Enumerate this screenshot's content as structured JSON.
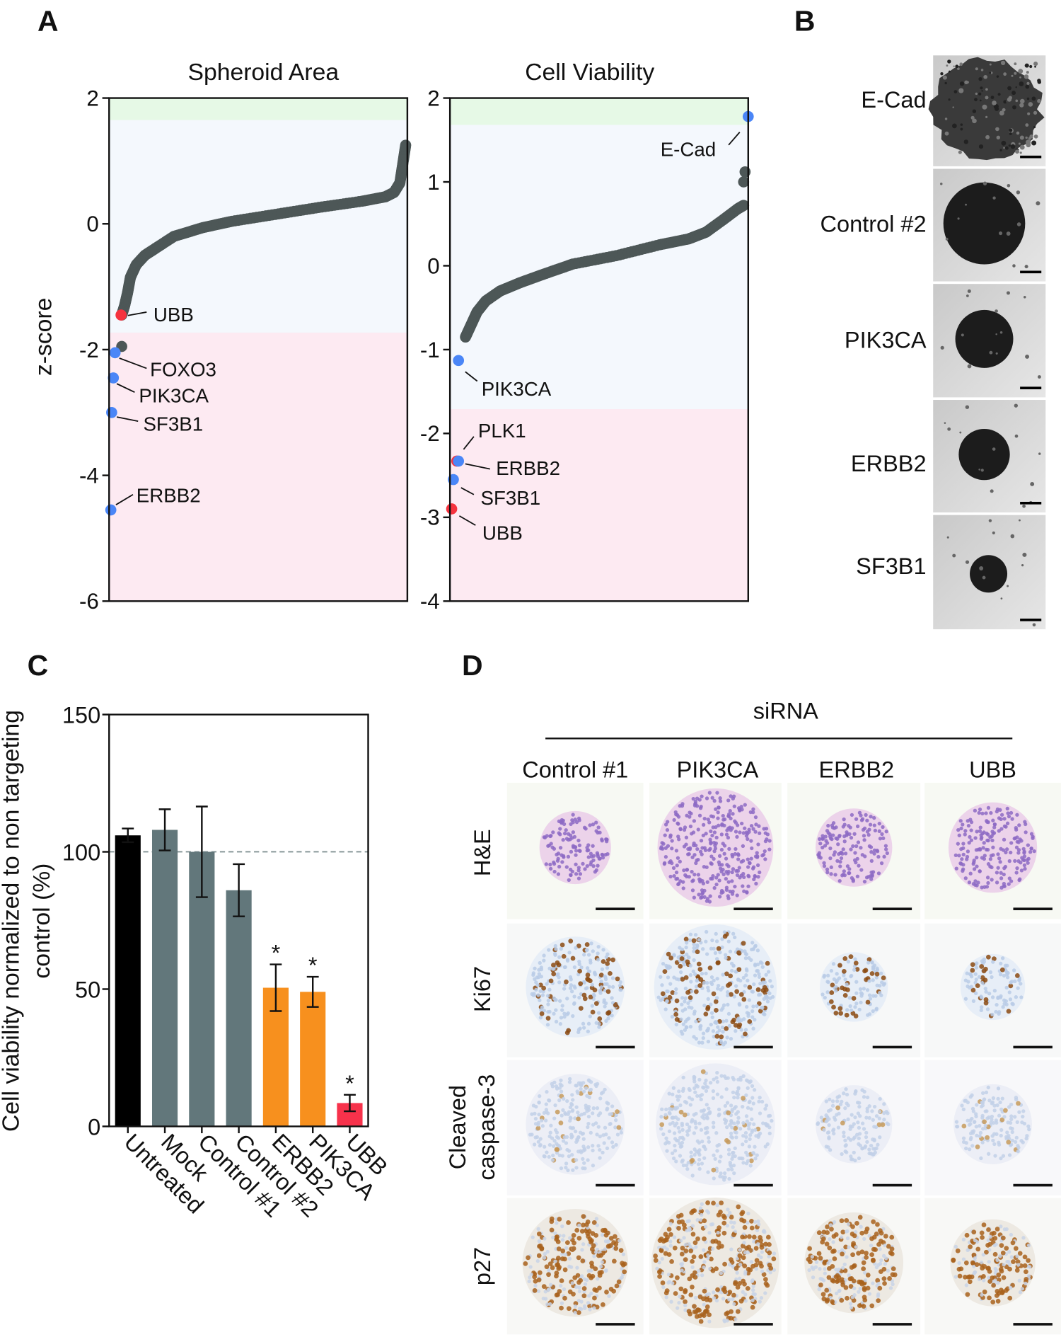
{
  "panels": {
    "A": "A",
    "B": "B",
    "C": "C",
    "D": "D"
  },
  "chart_data": [
    {
      "type": "scatter",
      "title": "Spheroid Area",
      "ylabel": "z-score",
      "ylim": [
        -6,
        2
      ],
      "yticks": [
        "2",
        "0",
        "-2",
        "-4",
        "-6"
      ],
      "bands": {
        "green_above": 1.65,
        "pink_below": -1.73
      },
      "band_colors": {
        "green": "#e6f9e6",
        "neutral": "#f4f8fd",
        "pink": "#fdeaf2"
      },
      "point_color": "#4d5757",
      "sorted_curve_percentile_vs_z": [
        [
          2,
          -1.45
        ],
        [
          3,
          -1.3
        ],
        [
          4,
          -1.1
        ],
        [
          5,
          -0.85
        ],
        [
          7,
          -0.65
        ],
        [
          10,
          -0.5
        ],
        [
          14,
          -0.38
        ],
        [
          20,
          -0.2
        ],
        [
          30,
          -0.06
        ],
        [
          40,
          0.04
        ],
        [
          55,
          0.15
        ],
        [
          70,
          0.26
        ],
        [
          85,
          0.36
        ],
        [
          93,
          0.43
        ],
        [
          96,
          0.5
        ],
        [
          98,
          0.65
        ],
        [
          99,
          0.95
        ],
        [
          100,
          1.25
        ]
      ],
      "extra_points": [
        {
          "percentile": 2,
          "z": -1.95
        }
      ],
      "highlighted": [
        {
          "label": "UBB",
          "z": -1.45,
          "color": "#f5333f"
        },
        {
          "label": "FOXO3",
          "z": -2.05,
          "color": "#4a86f7"
        },
        {
          "label": "PIK3CA",
          "z": -2.45,
          "color": "#4a86f7"
        },
        {
          "label": "SF3B1",
          "z": -3.0,
          "color": "#4a86f7"
        },
        {
          "label": "ERBB2",
          "z": -4.55,
          "color": "#4a86f7"
        }
      ]
    },
    {
      "type": "scatter",
      "title": "Cell Viability",
      "ylim": [
        -4,
        2
      ],
      "yticks": [
        "2",
        "1",
        "0",
        "-1",
        "-2",
        "-3",
        "-4"
      ],
      "bands": {
        "green_above": 1.68,
        "pink_below": -1.71
      },
      "point_color": "#4d5757",
      "sorted_curve_percentile_vs_z": [
        [
          3,
          -0.85
        ],
        [
          5,
          -0.7
        ],
        [
          7,
          -0.55
        ],
        [
          10,
          -0.42
        ],
        [
          15,
          -0.3
        ],
        [
          22,
          -0.2
        ],
        [
          30,
          -0.1
        ],
        [
          40,
          0.02
        ],
        [
          55,
          0.12
        ],
        [
          70,
          0.25
        ],
        [
          80,
          0.32
        ],
        [
          86,
          0.4
        ],
        [
          92,
          0.55
        ],
        [
          97,
          0.68
        ],
        [
          99,
          0.72
        ]
      ],
      "extra_points": [
        {
          "percentile": 99,
          "z": 1.0
        },
        {
          "percentile": 99.5,
          "z": 1.12
        }
      ],
      "highlighted": [
        {
          "label": "E-Cad",
          "z": 1.78,
          "color": "#4a86f7"
        },
        {
          "label": "PIK3CA",
          "z": -1.13,
          "color": "#4a86f7"
        },
        {
          "label": "PLK1",
          "z": -2.33,
          "color": "#f5333f"
        },
        {
          "label": "ERBB2",
          "z": -2.33,
          "color": "#4a86f7"
        },
        {
          "label": "SF3B1",
          "z": -2.55,
          "color": "#4a86f7"
        },
        {
          "label": "UBB",
          "z": -2.9,
          "color": "#f5333f"
        }
      ]
    },
    {
      "type": "bar",
      "categories": [
        "Untreated",
        "Mock",
        "Control #1",
        "Control #2",
        "ERBB2",
        "PIK3CA",
        "UBB"
      ],
      "values": [
        106,
        108,
        100,
        86,
        50.5,
        49,
        8.5
      ],
      "errors": [
        2.5,
        7.5,
        16.5,
        9.5,
        8.5,
        5.5,
        3
      ],
      "colors": [
        "#000000",
        "#62777b",
        "#62777b",
        "#62777b",
        "#f7901e",
        "#f7901e",
        "#f7324b"
      ],
      "significance": [
        "",
        "",
        "",
        "",
        "*",
        "*",
        "*"
      ],
      "ylabel_line1": "Cell viability normalized to non targeting",
      "ylabel_line2": "control (%)",
      "ylim": [
        0,
        150
      ],
      "yticks": [
        "150",
        "100",
        "50",
        "0"
      ],
      "reference_line": 100
    }
  ],
  "panelB": {
    "rows": [
      "E-Cad",
      "Control #2",
      "PIK3CA",
      "ERBB2",
      "SF3B1"
    ]
  },
  "panelD": {
    "header": "siRNA",
    "columns": [
      "Control #1",
      "PIK3CA",
      "ERBB2",
      "UBB"
    ],
    "rows": [
      "H&E",
      "Ki67",
      "Cleaved",
      "caspase-3",
      "p27"
    ]
  }
}
